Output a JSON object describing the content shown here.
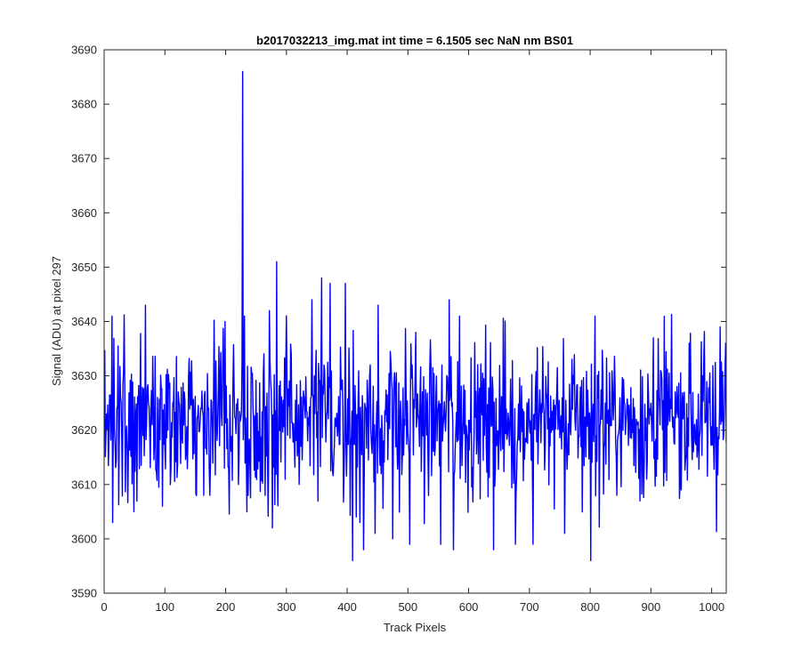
{
  "chart_data": {
    "type": "line",
    "title": "b2017032213_img.mat int time = 6.1505 sec  NaN nm BS01",
    "xlabel": "Track Pixels",
    "ylabel": "Signal (ADU) at pixel 297",
    "xlim": [
      0,
      1024
    ],
    "ylim": [
      3590,
      3690
    ],
    "xticks": [
      0,
      100,
      200,
      300,
      400,
      500,
      600,
      700,
      800,
      900,
      1000
    ],
    "yticks": [
      3590,
      3600,
      3610,
      3620,
      3630,
      3640,
      3650,
      3660,
      3670,
      3680,
      3690
    ],
    "grid": false,
    "legend": "none",
    "line_color": "#0000ff",
    "n_points": 1024,
    "baseline_mean": 3622,
    "noise_std": 7,
    "notable_points": [
      {
        "x": 12,
        "y": 3641
      },
      {
        "x": 13,
        "y": 3603
      },
      {
        "x": 48,
        "y": 3605
      },
      {
        "x": 67,
        "y": 3643
      },
      {
        "x": 95,
        "y": 3606
      },
      {
        "x": 163,
        "y": 3608
      },
      {
        "x": 173,
        "y": 3608
      },
      {
        "x": 198,
        "y": 3640
      },
      {
        "x": 220,
        "y": 3610
      },
      {
        "x": 227,
        "y": 3686
      },
      {
        "x": 230,
        "y": 3641
      },
      {
        "x": 236,
        "y": 3608
      },
      {
        "x": 264,
        "y": 3608
      },
      {
        "x": 271,
        "y": 3642
      },
      {
        "x": 276,
        "y": 3602
      },
      {
        "x": 283,
        "y": 3651
      },
      {
        "x": 320,
        "y": 3610
      },
      {
        "x": 341,
        "y": 3644
      },
      {
        "x": 357,
        "y": 3648
      },
      {
        "x": 371,
        "y": 3647
      },
      {
        "x": 396,
        "y": 3647
      },
      {
        "x": 408,
        "y": 3596
      },
      {
        "x": 420,
        "y": 3603
      },
      {
        "x": 426,
        "y": 3598
      },
      {
        "x": 445,
        "y": 3601
      },
      {
        "x": 450,
        "y": 3643
      },
      {
        "x": 474,
        "y": 3600
      },
      {
        "x": 502,
        "y": 3599
      },
      {
        "x": 512,
        "y": 3638
      },
      {
        "x": 553,
        "y": 3599
      },
      {
        "x": 567,
        "y": 3644
      },
      {
        "x": 574,
        "y": 3598
      },
      {
        "x": 584,
        "y": 3641
      },
      {
        "x": 640,
        "y": 3598
      },
      {
        "x": 676,
        "y": 3599
      },
      {
        "x": 705,
        "y": 3599
      },
      {
        "x": 757,
        "y": 3601
      },
      {
        "x": 800,
        "y": 3596
      },
      {
        "x": 807,
        "y": 3641
      },
      {
        "x": 892,
        "y": 3611
      },
      {
        "x": 903,
        "y": 3637
      },
      {
        "x": 962,
        "y": 3636
      },
      {
        "x": 1013,
        "y": 3639
      },
      {
        "x": 1022,
        "y": 3636
      }
    ]
  }
}
